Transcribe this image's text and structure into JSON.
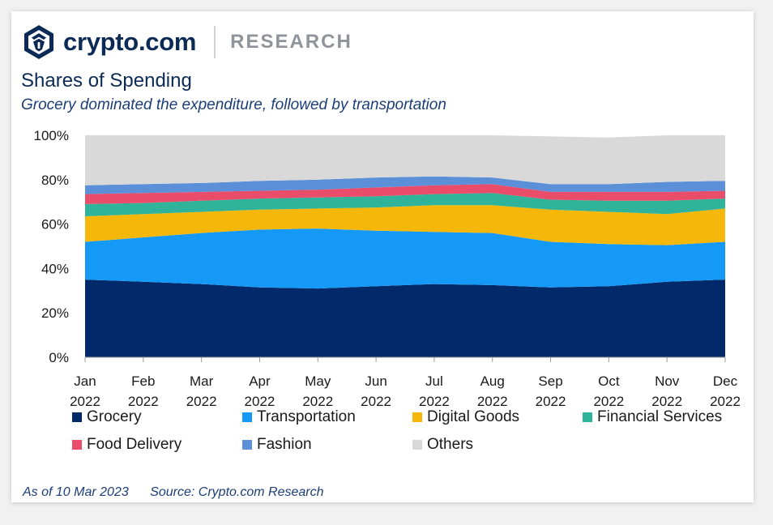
{
  "brand": {
    "name": "crypto.com",
    "section": "RESEARCH"
  },
  "title": "Shares of Spending",
  "subtitle": "Grocery dominated the expenditure,  followed by transportation",
  "footer": {
    "as_of": "As of 10 Mar 2023",
    "source": "Source: Crypto.com Research"
  },
  "chart_data": {
    "type": "area",
    "stacked": true,
    "categories": [
      [
        "Jan",
        "2022"
      ],
      [
        "Feb",
        "2022"
      ],
      [
        "Mar",
        "2022"
      ],
      [
        "Apr",
        "2022"
      ],
      [
        "May",
        "2022"
      ],
      [
        "Jun",
        "2022"
      ],
      [
        "Jul",
        "2022"
      ],
      [
        "Aug",
        "2022"
      ],
      [
        "Sep",
        "2022"
      ],
      [
        "Oct",
        "2022"
      ],
      [
        "Nov",
        "2022"
      ],
      [
        "Dec",
        "2022"
      ]
    ],
    "ylim": [
      0,
      100
    ],
    "yticks": [
      "0%",
      "20%",
      "40%",
      "60%",
      "80%",
      "100%"
    ],
    "series": [
      {
        "name": "Grocery",
        "color": "#022a6b",
        "values": [
          35,
          34,
          33,
          31.5,
          31,
          32,
          33,
          32.5,
          31.5,
          32,
          34,
          35
        ]
      },
      {
        "name": "Transportation",
        "color": "#1499f7",
        "values": [
          17,
          20,
          23,
          26,
          27,
          25,
          23.5,
          23.5,
          20.5,
          19,
          16.5,
          17
        ]
      },
      {
        "name": "Digital Goods",
        "color": "#f5b70a",
        "values": [
          11.5,
          10.5,
          9.5,
          9,
          9,
          10.5,
          12,
          12.5,
          14.5,
          14.5,
          14,
          15
        ]
      },
      {
        "name": "Financial Services",
        "color": "#2fb39a",
        "values": [
          5.5,
          5,
          5,
          5,
          5,
          5,
          5,
          5.5,
          4.5,
          5,
          6,
          4.5
        ]
      },
      {
        "name": "Food Delivery",
        "color": "#ea4d6a",
        "values": [
          4.5,
          4.5,
          4,
          3.5,
          3.5,
          4,
          4,
          4,
          3.5,
          4,
          4,
          3.5
        ]
      },
      {
        "name": "Fashion",
        "color": "#5b90d8",
        "values": [
          4,
          4,
          4,
          4.5,
          4.5,
          4.5,
          4,
          3,
          3.5,
          3.5,
          4.5,
          4.5
        ]
      },
      {
        "name": "Others",
        "color": "#d9d9d9",
        "values": [
          22.5,
          22,
          21.5,
          20.5,
          20,
          19,
          18.5,
          19,
          21.5,
          21,
          21,
          20.5
        ]
      }
    ]
  }
}
